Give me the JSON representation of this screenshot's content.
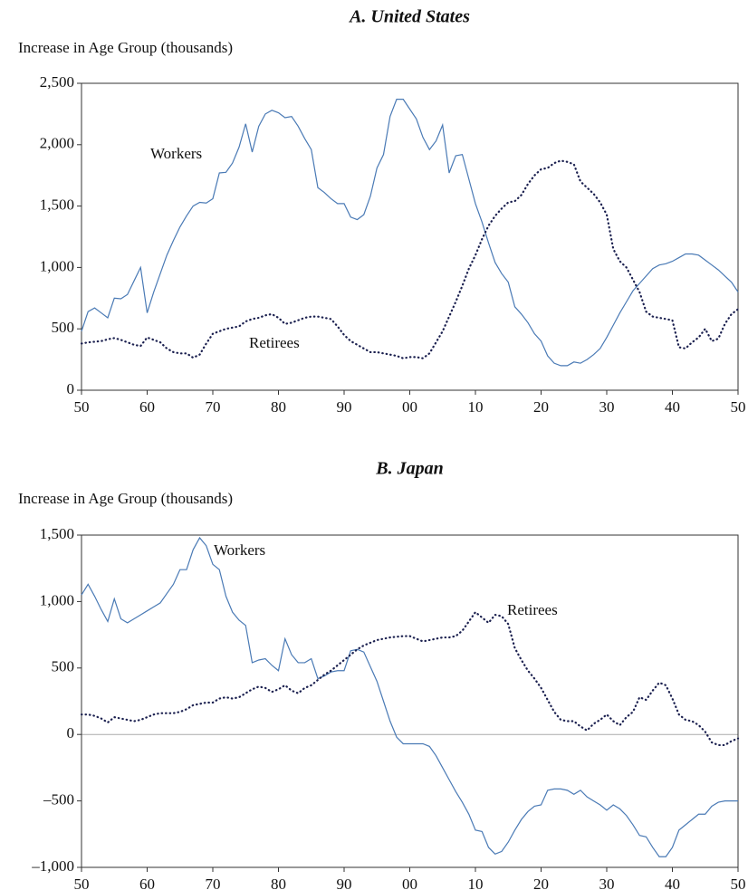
{
  "chart_data": [
    {
      "type": "line",
      "title": "A. United States",
      "y_label": "Increase in Age Group (thousands)",
      "x": [
        1950,
        1951,
        1952,
        1953,
        1954,
        1955,
        1956,
        1957,
        1958,
        1959,
        1960,
        1961,
        1962,
        1963,
        1964,
        1965,
        1966,
        1967,
        1968,
        1969,
        1970,
        1971,
        1972,
        1973,
        1974,
        1975,
        1976,
        1977,
        1978,
        1979,
        1980,
        1981,
        1982,
        1983,
        1984,
        1985,
        1986,
        1987,
        1988,
        1989,
        1990,
        1991,
        1992,
        1993,
        1994,
        1995,
        1996,
        1997,
        1998,
        1999,
        2000,
        2001,
        2002,
        2003,
        2004,
        2005,
        2006,
        2007,
        2008,
        2009,
        2010,
        2011,
        2012,
        2013,
        2014,
        2015,
        2016,
        2017,
        2018,
        2019,
        2020,
        2021,
        2022,
        2023,
        2024,
        2025,
        2026,
        2027,
        2028,
        2029,
        2030,
        2031,
        2032,
        2033,
        2034,
        2035,
        2036,
        2037,
        2038,
        2039,
        2040,
        2041,
        2042,
        2043,
        2044,
        2045,
        2046,
        2047,
        2048,
        2049,
        2050
      ],
      "series": [
        {
          "name": "Workers",
          "color": "#4a7ab5",
          "style": "solid",
          "values": [
            480,
            640,
            670,
            630,
            590,
            750,
            745,
            780,
            890,
            1000,
            630,
            800,
            950,
            1100,
            1220,
            1330,
            1420,
            1500,
            1530,
            1525,
            1560,
            1770,
            1775,
            1850,
            1980,
            2170,
            1940,
            2150,
            2250,
            2280,
            2260,
            2220,
            2230,
            2150,
            2050,
            1960,
            1650,
            1610,
            1560,
            1520,
            1520,
            1410,
            1390,
            1430,
            1580,
            1810,
            1920,
            2230,
            2370,
            2370,
            2290,
            2210,
            2060,
            1960,
            2030,
            2160,
            1770,
            1910,
            1920,
            1720,
            1520,
            1370,
            1200,
            1040,
            950,
            880,
            680,
            620,
            550,
            460,
            400,
            280,
            220,
            200,
            200,
            230,
            220,
            250,
            290,
            340,
            430,
            530,
            630,
            720,
            810,
            870,
            930,
            990,
            1020,
            1030,
            1050,
            1080,
            1110,
            1110,
            1100,
            1060,
            1020,
            980,
            930,
            880,
            800
          ]
        },
        {
          "name": "Retirees",
          "color": "#1c2150",
          "style": "dotted",
          "values": [
            380,
            390,
            395,
            400,
            415,
            425,
            410,
            390,
            370,
            360,
            430,
            410,
            390,
            340,
            310,
            300,
            300,
            265,
            290,
            380,
            460,
            480,
            500,
            510,
            520,
            560,
            580,
            590,
            610,
            620,
            590,
            540,
            550,
            570,
            590,
            600,
            600,
            590,
            580,
            520,
            450,
            400,
            370,
            340,
            310,
            310,
            300,
            290,
            280,
            260,
            270,
            270,
            260,
            300,
            390,
            480,
            600,
            720,
            850,
            990,
            1100,
            1230,
            1340,
            1420,
            1480,
            1530,
            1540,
            1590,
            1680,
            1750,
            1800,
            1810,
            1850,
            1870,
            1860,
            1840,
            1700,
            1650,
            1600,
            1530,
            1430,
            1150,
            1050,
            1000,
            900,
            800,
            640,
            600,
            590,
            580,
            570,
            350,
            340,
            390,
            430,
            500,
            400,
            420,
            540,
            620,
            660
          ]
        }
      ],
      "xlim": [
        1950,
        2050
      ],
      "xticks": [
        {
          "value": 1950,
          "label": "50"
        },
        {
          "value": 1960,
          "label": "60"
        },
        {
          "value": 1970,
          "label": "70"
        },
        {
          "value": 1980,
          "label": "80"
        },
        {
          "value": 1990,
          "label": "90"
        },
        {
          "value": 2000,
          "label": "00"
        },
        {
          "value": 2010,
          "label": "10"
        },
        {
          "value": 2020,
          "label": "20"
        },
        {
          "value": 2030,
          "label": "30"
        },
        {
          "value": 2040,
          "label": "40"
        },
        {
          "value": 2050,
          "label": "50"
        }
      ],
      "ylim": [
        0,
        2500
      ],
      "yticks": [
        0,
        500,
        {
          "value": 1000,
          "label": "1,000"
        },
        {
          "value": 1500,
          "label": "1,500"
        },
        {
          "value": 2000,
          "label": "2,000"
        },
        {
          "value": 2500,
          "label": "2,500"
        }
      ]
    },
    {
      "type": "line",
      "title": "B. Japan",
      "y_label": "Increase in Age Group (thousands)",
      "x": [
        1950,
        1951,
        1952,
        1953,
        1954,
        1955,
        1956,
        1957,
        1958,
        1959,
        1960,
        1961,
        1962,
        1963,
        1964,
        1965,
        1966,
        1967,
        1968,
        1969,
        1970,
        1971,
        1972,
        1973,
        1974,
        1975,
        1976,
        1977,
        1978,
        1979,
        1980,
        1981,
        1982,
        1983,
        1984,
        1985,
        1986,
        1987,
        1988,
        1989,
        1990,
        1991,
        1992,
        1993,
        1994,
        1995,
        1996,
        1997,
        1998,
        1999,
        2000,
        2001,
        2002,
        2003,
        2004,
        2005,
        2006,
        2007,
        2008,
        2009,
        2010,
        2011,
        2012,
        2013,
        2014,
        2015,
        2016,
        2017,
        2018,
        2019,
        2020,
        2021,
        2022,
        2023,
        2024,
        2025,
        2026,
        2027,
        2028,
        2029,
        2030,
        2031,
        2032,
        2033,
        2034,
        2035,
        2036,
        2037,
        2038,
        2039,
        2040,
        2041,
        2042,
        2043,
        2044,
        2045,
        2046,
        2047,
        2048,
        2049,
        2050
      ],
      "series": [
        {
          "name": "Workers",
          "color": "#4a7ab5",
          "style": "solid",
          "values": [
            1050,
            1130,
            1040,
            940,
            850,
            1020,
            870,
            840,
            870,
            900,
            930,
            960,
            990,
            1060,
            1130,
            1240,
            1240,
            1390,
            1480,
            1420,
            1280,
            1240,
            1040,
            920,
            860,
            820,
            540,
            560,
            570,
            520,
            480,
            720,
            600,
            540,
            540,
            570,
            420,
            440,
            470,
            480,
            480,
            630,
            640,
            620,
            510,
            400,
            250,
            100,
            -20,
            -70,
            -70,
            -70,
            -70,
            -90,
            -160,
            -250,
            -340,
            -430,
            -510,
            -600,
            -720,
            -730,
            -850,
            -900,
            -880,
            -810,
            -720,
            -640,
            -580,
            -540,
            -530,
            -420,
            -410,
            -410,
            -420,
            -450,
            -420,
            -470,
            -500,
            -530,
            -570,
            -530,
            -560,
            -610,
            -680,
            -760,
            -770,
            -850,
            -920,
            -920,
            -850,
            -720,
            -680,
            -640,
            -600,
            -600,
            -540,
            -510,
            -500,
            -500,
            -500
          ]
        },
        {
          "name": "Retirees",
          "color": "#1c2150",
          "style": "dotted",
          "values": [
            150,
            150,
            140,
            120,
            90,
            130,
            120,
            110,
            100,
            110,
            130,
            150,
            160,
            160,
            160,
            170,
            190,
            220,
            230,
            240,
            240,
            270,
            280,
            270,
            280,
            310,
            340,
            360,
            350,
            320,
            340,
            370,
            330,
            310,
            350,
            370,
            410,
            450,
            480,
            520,
            560,
            600,
            640,
            670,
            690,
            710,
            720,
            730,
            735,
            740,
            740,
            720,
            700,
            710,
            720,
            730,
            730,
            740,
            780,
            850,
            920,
            880,
            840,
            900,
            890,
            830,
            650,
            560,
            480,
            420,
            350,
            260,
            170,
            110,
            100,
            100,
            60,
            30,
            80,
            110,
            150,
            100,
            70,
            130,
            170,
            280,
            260,
            330,
            390,
            370,
            270,
            150,
            110,
            100,
            70,
            20,
            -60,
            -80,
            -80,
            -50,
            -30
          ]
        }
      ],
      "xlim": [
        1950,
        2050
      ],
      "xticks": [
        {
          "value": 1950,
          "label": "50"
        },
        {
          "value": 1960,
          "label": "60"
        },
        {
          "value": 1970,
          "label": "70"
        },
        {
          "value": 1980,
          "label": "80"
        },
        {
          "value": 1990,
          "label": "90"
        },
        {
          "value": 2000,
          "label": "00"
        },
        {
          "value": 2010,
          "label": "10"
        },
        {
          "value": 2020,
          "label": "20"
        },
        {
          "value": 2030,
          "label": "30"
        },
        {
          "value": 2040,
          "label": "40"
        },
        {
          "value": 2050,
          "label": "50"
        }
      ],
      "ylim": [
        -1000,
        1500
      ],
      "yticks": [
        {
          "value": -1000,
          "label": "–1,000"
        },
        {
          "value": -500,
          "label": "–500"
        },
        0,
        500,
        {
          "value": 1000,
          "label": "1,000"
        },
        {
          "value": 1500,
          "label": "1,500"
        }
      ]
    }
  ]
}
